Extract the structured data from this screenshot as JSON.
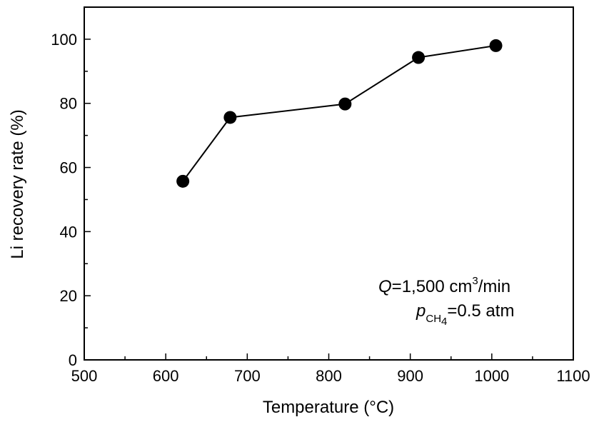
{
  "chart_data": {
    "type": "line",
    "title": "",
    "xlabel": "Temperature (°C)",
    "ylabel": "Li recovery rate (%)",
    "xlim": [
      500,
      1100
    ],
    "ylim": [
      0,
      110
    ],
    "xticks": [
      500,
      600,
      700,
      800,
      900,
      1000,
      1100
    ],
    "yticks": [
      0,
      20,
      40,
      60,
      80,
      100
    ],
    "xtick_labels": [
      "500",
      "600",
      "700",
      "800",
      "900",
      "1000",
      "1100"
    ],
    "ytick_labels": [
      "0",
      "20",
      "40",
      "60",
      "80",
      "100"
    ],
    "grid": false,
    "series": [
      {
        "name": "Li recovery rate",
        "marker": "filled-circle",
        "color": "#000000",
        "x": [
          621,
          679,
          820,
          910,
          1005
        ],
        "y": [
          55.7,
          75.6,
          79.8,
          94.3,
          98.0
        ]
      }
    ],
    "annotations": {
      "q_symbol": "Q",
      "q_text": "=1,500 cm",
      "q_sup": "3",
      "q_unit": "/min",
      "p_symbol": "p",
      "p_sub": "CH",
      "p_subsub": "4",
      "p_text": "=0.5 atm"
    }
  }
}
